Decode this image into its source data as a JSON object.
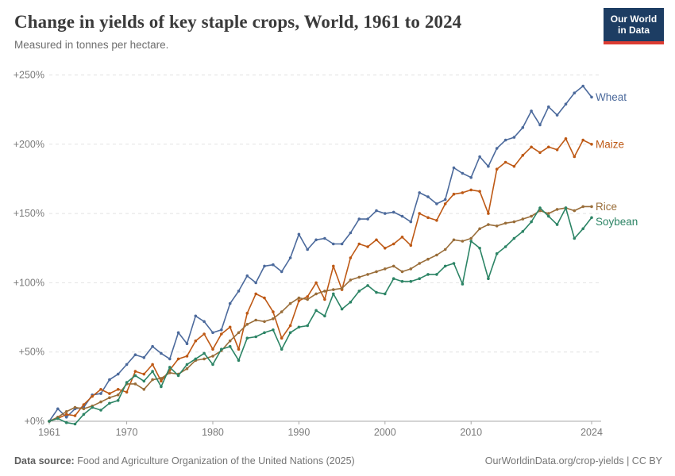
{
  "header": {
    "title": "Change in yields of key staple crops, World, 1961 to 2024",
    "subtitle": "Measured in tonnes per hectare.",
    "logo": {
      "line1": "Our World",
      "line2": "in Data",
      "bg_color": "#1d3d63",
      "bar_color": "#dc3c32"
    }
  },
  "footer": {
    "source_label": "Data source:",
    "source_text": " Food and Agriculture Organization of the United Nations (2025)",
    "link_text": "OurWorldinData.org/crop-yields",
    "separator": " | ",
    "license": "CC BY"
  },
  "chart_data": {
    "type": "line",
    "title": "Change in yields of key staple crops, World, 1961 to 2024",
    "subtitle": "Measured in tonnes per hectare.",
    "unit": "% change relative to 1961",
    "grid": "horizontal-dashed",
    "legend_position": "end-of-line-labels",
    "xlim": [
      1961,
      2024
    ],
    "ylim": [
      0,
      250
    ],
    "x_ticks": [
      1961,
      1970,
      1980,
      1990,
      2000,
      2010,
      2024
    ],
    "y_tick_values": [
      0,
      50,
      100,
      150,
      200,
      250
    ],
    "y_ticks": [
      "+0%",
      "+50%",
      "+100%",
      "+150%",
      "+200%",
      "+250%"
    ],
    "x": [
      1961,
      1962,
      1963,
      1964,
      1965,
      1966,
      1967,
      1968,
      1969,
      1970,
      1971,
      1972,
      1973,
      1974,
      1975,
      1976,
      1977,
      1978,
      1979,
      1980,
      1981,
      1982,
      1983,
      1984,
      1985,
      1986,
      1987,
      1988,
      1989,
      1990,
      1991,
      1992,
      1993,
      1994,
      1995,
      1996,
      1997,
      1998,
      1999,
      2000,
      2001,
      2002,
      2003,
      2004,
      2005,
      2006,
      2007,
      2008,
      2009,
      2010,
      2011,
      2012,
      2013,
      2014,
      2015,
      2016,
      2017,
      2018,
      2019,
      2020,
      2021,
      2022,
      2023,
      2024
    ],
    "series": [
      {
        "name": "Wheat",
        "color": "#4C6A9C",
        "label_dy": 0,
        "values": [
          0,
          9,
          3,
          9,
          10,
          19,
          20,
          30,
          34,
          41,
          48,
          46,
          54,
          49,
          45,
          64,
          56,
          76,
          72,
          64,
          66,
          85,
          94,
          105,
          100,
          112,
          113,
          108,
          118,
          135,
          124,
          131,
          132,
          128,
          128,
          136,
          146,
          146,
          152,
          150,
          151,
          148,
          144,
          165,
          162,
          157,
          160,
          183,
          179,
          176,
          191,
          184,
          197,
          203,
          205,
          212,
          224,
          214,
          227,
          221,
          229,
          237,
          242,
          234
        ]
      },
      {
        "name": "Maize",
        "color": "#BE5915",
        "label_dy": 0,
        "values": [
          0,
          2,
          5,
          4,
          12,
          18,
          23,
          20,
          23,
          21,
          36,
          34,
          41,
          29,
          37,
          45,
          47,
          58,
          63,
          52,
          63,
          68,
          52,
          78,
          92,
          89,
          79,
          60,
          69,
          87,
          90,
          100,
          88,
          112,
          95,
          118,
          128,
          126,
          131,
          125,
          128,
          133,
          127,
          150,
          147,
          145,
          157,
          164,
          165,
          167,
          166,
          150,
          182,
          187,
          184,
          192,
          198,
          194,
          198,
          196,
          204,
          191,
          203,
          200
        ]
      },
      {
        "name": "Rice",
        "color": "#996D39",
        "label_dy": 0,
        "values": [
          0,
          3,
          7,
          10,
          9,
          11,
          14,
          17,
          19,
          27,
          27,
          23,
          30,
          31,
          35,
          34,
          38,
          44,
          45,
          47,
          51,
          58,
          64,
          70,
          73,
          72,
          74,
          79,
          85,
          89,
          88,
          92,
          94,
          95,
          96,
          102,
          104,
          106,
          108,
          110,
          112,
          108,
          110,
          114,
          117,
          120,
          124,
          131,
          130,
          132,
          139,
          142,
          141,
          143,
          144,
          146,
          148,
          152,
          150,
          153,
          154,
          152,
          155,
          155
        ]
      },
      {
        "name": "Soybean",
        "color": "#2C8465",
        "label_dy": 5,
        "values": [
          0,
          2,
          -1,
          -2,
          5,
          10,
          8,
          13,
          15,
          28,
          33,
          29,
          36,
          25,
          39,
          33,
          41,
          45,
          49,
          41,
          52,
          54,
          44,
          60,
          61,
          64,
          66,
          52,
          64,
          68,
          69,
          80,
          76,
          92,
          81,
          86,
          94,
          98,
          93,
          92,
          103,
          101,
          101,
          103,
          106,
          106,
          112,
          114,
          99,
          130,
          125,
          103,
          121,
          126,
          132,
          137,
          144,
          154,
          148,
          142,
          154,
          132,
          139,
          147
        ]
      }
    ],
    "style": {
      "gridline_color": "#e2e2e2",
      "axis_line_color": "#a8a8a8",
      "tick_label_color": "#7a7a7a"
    }
  }
}
